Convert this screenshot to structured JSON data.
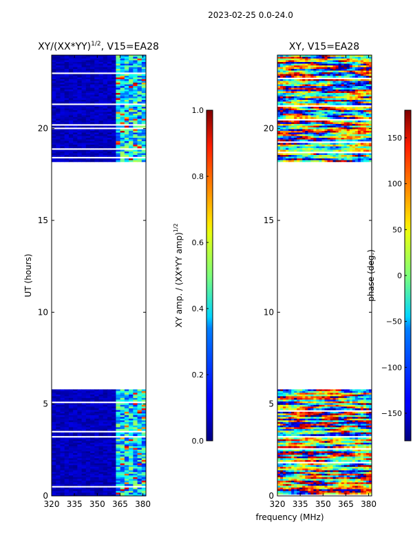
{
  "figure_title": "2023-02-25 0.0-24.0",
  "shared_xlabel": "frequency (MHz)",
  "colors": {
    "background": "#00007f",
    "frame": "#000000"
  },
  "chart_data": [
    {
      "type": "heatmap",
      "title": "XY/(XX*YY)",
      "title_exponent": "1/2",
      "title_suffix": ", V15=EA28",
      "ylabel": "UT (hours)",
      "xlim": [
        320,
        382
      ],
      "ylim": [
        0,
        24
      ],
      "xticks": [
        320,
        335,
        350,
        365,
        380
      ],
      "yticks": [
        0,
        5,
        10,
        15,
        20
      ],
      "data_bands_hours": [
        [
          0,
          5.8
        ],
        [
          18.2,
          24.0
        ]
      ],
      "colorbar": {
        "label": "XY amp. / (XX*YY amp)",
        "label_exponent": "1/2",
        "range": [
          0.0,
          1.0
        ],
        "ticks": [
          "0.0",
          "0.2",
          "0.4",
          "0.6",
          "0.8",
          "1.0"
        ]
      }
    },
    {
      "type": "heatmap",
      "title": "XY, V15=EA28",
      "ylabel": "",
      "xlim": [
        320,
        382
      ],
      "ylim": [
        0,
        24
      ],
      "xticks": [
        320,
        335,
        350,
        365,
        380
      ],
      "yticks": [
        0,
        5,
        10,
        15,
        20
      ],
      "data_bands_hours": [
        [
          0,
          5.8
        ],
        [
          18.2,
          24.0
        ]
      ],
      "colorbar": {
        "label": "phase (deg.)",
        "range": [
          -180,
          180
        ],
        "ticks": [
          "−150",
          "−100",
          "−50",
          "0",
          "50",
          "100",
          "150"
        ]
      }
    }
  ]
}
